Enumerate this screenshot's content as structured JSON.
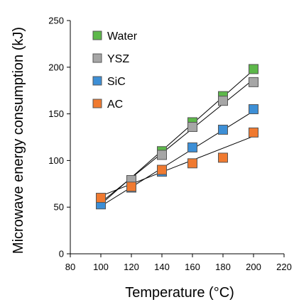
{
  "chart_data": {
    "type": "scatter",
    "title": "",
    "xlabel": "Temperature (°C)",
    "ylabel": "Microwave energy consumption  (kJ)",
    "xlim": [
      80,
      220
    ],
    "ylim": [
      0,
      250
    ],
    "xticks": [
      80,
      100,
      120,
      140,
      160,
      180,
      200,
      220
    ],
    "yticks": [
      0,
      50,
      100,
      150,
      200,
      250
    ],
    "grid": false,
    "legend_position": "top-left",
    "x": [
      100,
      120,
      140,
      160,
      180,
      200
    ],
    "series": [
      {
        "name": "Water",
        "color": "#5db84a",
        "values": [
          56,
          78,
          110,
          141,
          169,
          198
        ],
        "trendline": [
          [
            100,
            53
          ],
          [
            200,
            197
          ]
        ]
      },
      {
        "name": "YSZ",
        "color": "#a6a6a6",
        "values": [
          57,
          79,
          106,
          136,
          164,
          184
        ],
        "trendline": [
          [
            100,
            55
          ],
          [
            200,
            187
          ]
        ]
      },
      {
        "name": "SiC",
        "color": "#3d8fd6",
        "values": [
          53,
          71,
          88,
          114,
          133,
          155
        ],
        "trendline": [
          [
            100,
            51
          ],
          [
            200,
            153
          ]
        ]
      },
      {
        "name": "AC",
        "color": "#f07a30",
        "values": [
          60,
          72,
          90,
          97,
          103,
          130
        ],
        "trendline": [
          [
            100,
            62
          ],
          [
            200,
            126
          ]
        ]
      }
    ]
  }
}
